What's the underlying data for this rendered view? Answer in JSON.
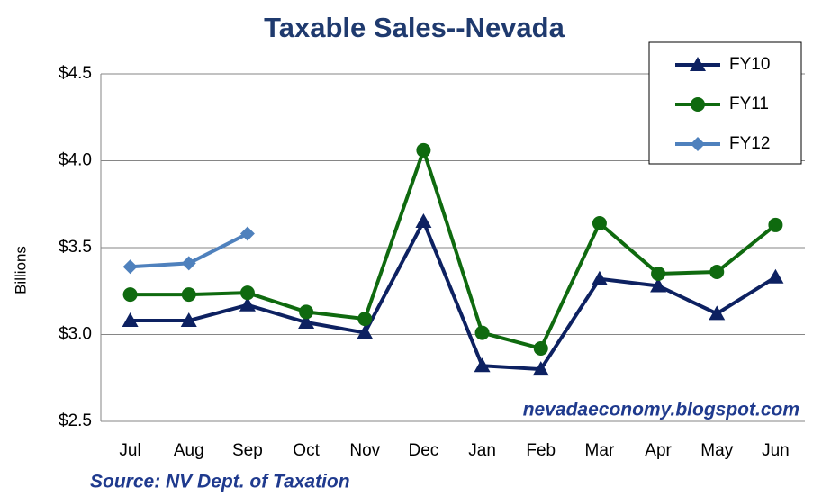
{
  "chart_data": {
    "type": "line",
    "title": "Taxable Sales--Nevada",
    "y_label": "Billions",
    "annotations": [
      "nevadaeconomy.blogspot.com",
      "Source: NV Dept. of Taxation"
    ],
    "categories": [
      "Jul",
      "Aug",
      "Sep",
      "Oct",
      "Nov",
      "Dec",
      "Jan",
      "Feb",
      "Mar",
      "Apr",
      "May",
      "Jun"
    ],
    "series": [
      {
        "name": "FY10",
        "color": "#0d2161",
        "marker": "triangle",
        "values": [
          3.08,
          3.08,
          3.17,
          3.07,
          3.01,
          3.65,
          2.82,
          2.8,
          3.32,
          3.28,
          3.12,
          3.33
        ]
      },
      {
        "name": "FY11",
        "color": "#0f6a0f",
        "marker": "circle",
        "values": [
          3.23,
          3.23,
          3.24,
          3.13,
          3.09,
          4.06,
          3.01,
          2.92,
          3.64,
          3.35,
          3.36,
          3.63
        ]
      },
      {
        "name": "FY12",
        "color": "#4f81bd",
        "marker": "diamond",
        "values": [
          3.39,
          3.41,
          3.58,
          null,
          null,
          null,
          null,
          null,
          null,
          null,
          null,
          null
        ]
      }
    ],
    "ylim": [
      2.5,
      4.5
    ],
    "yticks": [
      {
        "value": 2.5,
        "label": "$2.5"
      },
      {
        "value": 3.0,
        "label": "$3.0"
      },
      {
        "value": 3.5,
        "label": "$3.5"
      },
      {
        "value": 4.0,
        "label": "$4.0"
      },
      {
        "value": 4.5,
        "label": "$4.5"
      }
    ],
    "grid": true,
    "legend": "top-right"
  }
}
